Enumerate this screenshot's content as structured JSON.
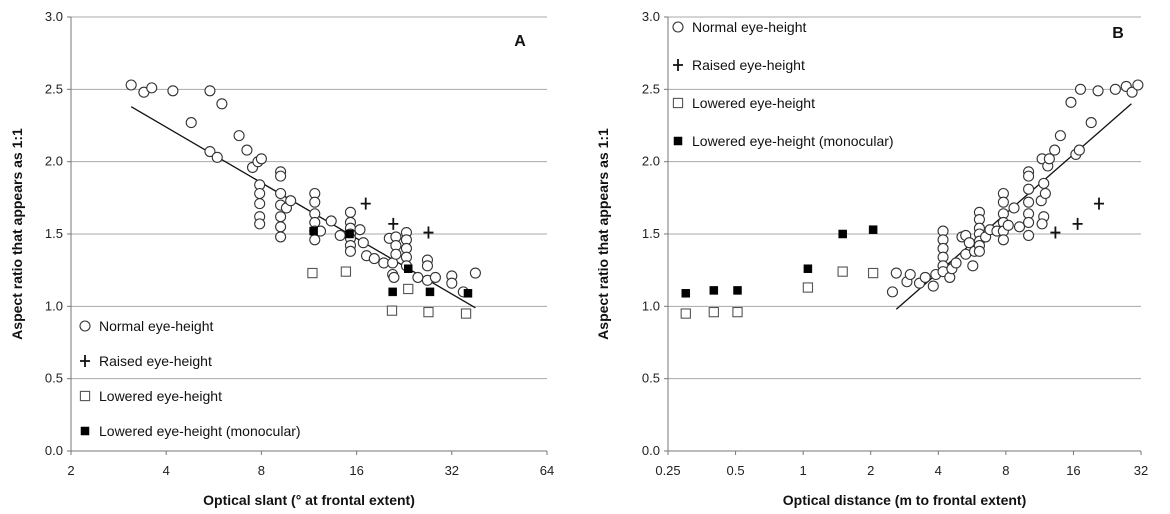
{
  "chart_data": [
    {
      "type": "scatter",
      "panel_label": "A",
      "xlabel": "Optical slant (° at frontal extent)",
      "ylabel": "Aspect ratio that appears as 1:1",
      "x_scale": "log2",
      "xlim": [
        2,
        64
      ],
      "ylim": [
        0,
        3
      ],
      "x_ticks": [
        "2",
        "4",
        "8",
        "16",
        "32",
        "64"
      ],
      "y_ticks": [
        "0.0",
        "0.5",
        "1.0",
        "1.5",
        "2.0",
        "2.5",
        "3.0"
      ],
      "grid": "horizontal",
      "legend_position": "bottom-left",
      "series": [
        {
          "name": "Normal eye-height",
          "marker": "circle-open",
          "points": [
            [
              3.1,
              2.53
            ],
            [
              3.4,
              2.48
            ],
            [
              3.6,
              2.51
            ],
            [
              4.2,
              2.49
            ],
            [
              4.8,
              2.27
            ],
            [
              5.5,
              2.49
            ],
            [
              6.0,
              2.4
            ],
            [
              5.5,
              2.07
            ],
            [
              5.8,
              2.03
            ],
            [
              6.8,
              2.18
            ],
            [
              7.2,
              2.08
            ],
            [
              7.5,
              1.96
            ],
            [
              7.8,
              2.0
            ],
            [
              8.0,
              2.02
            ],
            [
              7.9,
              1.84
            ],
            [
              7.9,
              1.78
            ],
            [
              7.9,
              1.71
            ],
            [
              7.9,
              1.62
            ],
            [
              7.9,
              1.57
            ],
            [
              9.2,
              1.93
            ],
            [
              9.2,
              1.9
            ],
            [
              9.2,
              1.78
            ],
            [
              9.2,
              1.7
            ],
            [
              9.2,
              1.62
            ],
            [
              9.2,
              1.55
            ],
            [
              9.2,
              1.48
            ],
            [
              9.6,
              1.68
            ],
            [
              9.9,
              1.73
            ],
            [
              11.8,
              1.78
            ],
            [
              11.8,
              1.72
            ],
            [
              11.8,
              1.64
            ],
            [
              11.8,
              1.58
            ],
            [
              11.8,
              1.52
            ],
            [
              11.8,
              1.46
            ],
            [
              12.3,
              1.52
            ],
            [
              13.3,
              1.59
            ],
            [
              14.2,
              1.49
            ],
            [
              15.3,
              1.65
            ],
            [
              15.3,
              1.58
            ],
            [
              15.3,
              1.54
            ],
            [
              15.3,
              1.5
            ],
            [
              15.3,
              1.47
            ],
            [
              15.3,
              1.42
            ],
            [
              15.3,
              1.38
            ],
            [
              16.4,
              1.53
            ],
            [
              16.8,
              1.44
            ],
            [
              17.2,
              1.35
            ],
            [
              18.2,
              1.33
            ],
            [
              19.5,
              1.3
            ],
            [
              20.3,
              1.47
            ],
            [
              20.8,
              1.3
            ],
            [
              20.8,
              1.22
            ],
            [
              21.0,
              1.2
            ],
            [
              21.3,
              1.48
            ],
            [
              21.3,
              1.42
            ],
            [
              21.3,
              1.36
            ],
            [
              23.0,
              1.51
            ],
            [
              23.0,
              1.46
            ],
            [
              23.0,
              1.4
            ],
            [
              23.0,
              1.34
            ],
            [
              23.0,
              1.28
            ],
            [
              25.0,
              1.2
            ],
            [
              26.8,
              1.32
            ],
            [
              26.8,
              1.28
            ],
            [
              26.8,
              1.18
            ],
            [
              28.4,
              1.2
            ],
            [
              32.0,
              1.21
            ],
            [
              32.0,
              1.16
            ],
            [
              34.8,
              1.1
            ],
            [
              38.0,
              1.23
            ]
          ]
        },
        {
          "name": "Raised eye-height",
          "marker": "cross",
          "points": [
            [
              17.1,
              1.71
            ],
            [
              20.9,
              1.57
            ],
            [
              27.0,
              1.51
            ]
          ]
        },
        {
          "name": "Lowered eye-height",
          "marker": "square-open",
          "points": [
            [
              11.6,
              1.23
            ],
            [
              14.8,
              1.24
            ],
            [
              20.7,
              0.97
            ],
            [
              23.3,
              1.12
            ],
            [
              27.0,
              0.96
            ],
            [
              35.5,
              0.95
            ]
          ]
        },
        {
          "name": "Lowered eye-height (monocular)",
          "marker": "square-filled",
          "points": [
            [
              11.7,
              1.52
            ],
            [
              15.2,
              1.5
            ],
            [
              20.8,
              1.1
            ],
            [
              23.3,
              1.26
            ],
            [
              27.3,
              1.1
            ],
            [
              36.0,
              1.09
            ]
          ]
        }
      ],
      "trendline": [
        [
          3.1,
          2.38
        ],
        [
          38.0,
          0.99
        ]
      ]
    },
    {
      "type": "scatter",
      "panel_label": "B",
      "xlabel": "Optical distance (m to frontal extent)",
      "ylabel": "Aspect ratio that appears as 1:1",
      "x_scale": "log2",
      "xlim": [
        0.25,
        32
      ],
      "ylim": [
        0,
        3
      ],
      "x_ticks": [
        "0.25",
        "0.5",
        "1",
        "2",
        "4",
        "8",
        "16",
        "32"
      ],
      "y_ticks": [
        "0.0",
        "0.5",
        "1.0",
        "1.5",
        "2.0",
        "2.5",
        "3.0"
      ],
      "grid": "horizontal",
      "legend_position": "top-left",
      "series": [
        {
          "name": "Normal eye-height",
          "marker": "circle-open",
          "points": [
            [
              2.5,
              1.1
            ],
            [
              2.6,
              1.23
            ],
            [
              2.9,
              1.17
            ],
            [
              3.0,
              1.22
            ],
            [
              3.3,
              1.16
            ],
            [
              3.5,
              1.2
            ],
            [
              3.8,
              1.14
            ],
            [
              3.9,
              1.22
            ],
            [
              4.2,
              1.52
            ],
            [
              4.2,
              1.46
            ],
            [
              4.2,
              1.4
            ],
            [
              4.2,
              1.34
            ],
            [
              4.2,
              1.28
            ],
            [
              4.2,
              1.24
            ],
            [
              4.5,
              1.2
            ],
            [
              4.6,
              1.26
            ],
            [
              4.8,
              1.3
            ],
            [
              5.1,
              1.48
            ],
            [
              5.3,
              1.49
            ],
            [
              5.3,
              1.36
            ],
            [
              5.5,
              1.44
            ],
            [
              5.7,
              1.28
            ],
            [
              5.8,
              1.38
            ],
            [
              6.1,
              1.65
            ],
            [
              6.1,
              1.6
            ],
            [
              6.1,
              1.54
            ],
            [
              6.1,
              1.5
            ],
            [
              6.1,
              1.45
            ],
            [
              6.1,
              1.42
            ],
            [
              6.1,
              1.38
            ],
            [
              6.5,
              1.48
            ],
            [
              6.8,
              1.53
            ],
            [
              7.3,
              1.52
            ],
            [
              7.8,
              1.78
            ],
            [
              7.8,
              1.72
            ],
            [
              7.8,
              1.64
            ],
            [
              7.8,
              1.58
            ],
            [
              7.8,
              1.52
            ],
            [
              7.8,
              1.46
            ],
            [
              8.2,
              1.56
            ],
            [
              8.7,
              1.68
            ],
            [
              9.2,
              1.55
            ],
            [
              10.1,
              1.93
            ],
            [
              10.1,
              1.9
            ],
            [
              10.1,
              1.81
            ],
            [
              10.1,
              1.72
            ],
            [
              10.1,
              1.64
            ],
            [
              10.1,
              1.58
            ],
            [
              10.1,
              1.49
            ],
            [
              11.5,
              1.73
            ],
            [
              11.6,
              2.02
            ],
            [
              11.8,
              1.85
            ],
            [
              12.0,
              1.78
            ],
            [
              11.8,
              1.62
            ],
            [
              11.6,
              1.57
            ],
            [
              12.3,
              1.97
            ],
            [
              12.5,
              2.02
            ],
            [
              13.2,
              2.08
            ],
            [
              14.0,
              2.18
            ],
            [
              15.6,
              2.41
            ],
            [
              16.4,
              2.05
            ],
            [
              17.0,
              2.08
            ],
            [
              17.2,
              2.5
            ],
            [
              19.2,
              2.27
            ],
            [
              20.6,
              2.49
            ],
            [
              24.6,
              2.5
            ],
            [
              27.5,
              2.52
            ],
            [
              29.2,
              2.48
            ],
            [
              31.0,
              2.53
            ]
          ]
        },
        {
          "name": "Raised eye-height",
          "marker": "cross",
          "points": [
            [
              13.3,
              1.51
            ],
            [
              16.7,
              1.57
            ],
            [
              20.8,
              1.71
            ]
          ]
        },
        {
          "name": "Lowered eye-height",
          "marker": "square-open",
          "points": [
            [
              0.3,
              0.95
            ],
            [
              0.4,
              0.96
            ],
            [
              0.51,
              0.96
            ],
            [
              1.05,
              1.13
            ],
            [
              1.5,
              1.24
            ],
            [
              2.05,
              1.23
            ]
          ]
        },
        {
          "name": "Lowered eye-height (monocular)",
          "marker": "square-filled",
          "points": [
            [
              0.3,
              1.09
            ],
            [
              0.4,
              1.11
            ],
            [
              0.51,
              1.11
            ],
            [
              1.05,
              1.26
            ],
            [
              1.5,
              1.5
            ],
            [
              2.05,
              1.53
            ]
          ]
        }
      ],
      "trendline": [
        [
          2.6,
          0.98
        ],
        [
          29.0,
          2.4
        ]
      ]
    }
  ]
}
